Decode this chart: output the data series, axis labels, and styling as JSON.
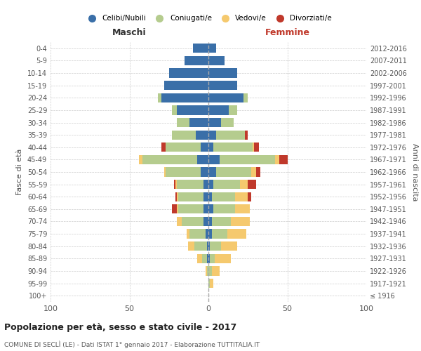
{
  "age_groups": [
    "100+",
    "95-99",
    "90-94",
    "85-89",
    "80-84",
    "75-79",
    "70-74",
    "65-69",
    "60-64",
    "55-59",
    "50-54",
    "45-49",
    "40-44",
    "35-39",
    "30-34",
    "25-29",
    "20-24",
    "15-19",
    "10-14",
    "5-9",
    "0-4"
  ],
  "birth_years": [
    "≤ 1916",
    "1917-1921",
    "1922-1926",
    "1927-1931",
    "1932-1936",
    "1937-1941",
    "1942-1946",
    "1947-1951",
    "1952-1956",
    "1957-1961",
    "1962-1966",
    "1967-1971",
    "1972-1976",
    "1977-1981",
    "1982-1986",
    "1987-1991",
    "1992-1996",
    "1997-2001",
    "2002-2006",
    "2007-2011",
    "2012-2016"
  ],
  "maschi": {
    "celibi": [
      0,
      0,
      0,
      1,
      1,
      2,
      3,
      3,
      3,
      3,
      5,
      7,
      5,
      8,
      12,
      20,
      30,
      28,
      25,
      15,
      10
    ],
    "coniugati": [
      0,
      0,
      1,
      3,
      8,
      10,
      14,
      16,
      16,
      17,
      22,
      35,
      22,
      15,
      8,
      3,
      2,
      0,
      0,
      0,
      0
    ],
    "vedovi": [
      0,
      0,
      1,
      3,
      4,
      2,
      3,
      1,
      1,
      1,
      1,
      2,
      0,
      0,
      0,
      0,
      0,
      0,
      0,
      0,
      0
    ],
    "divorziati": [
      0,
      0,
      0,
      0,
      0,
      0,
      0,
      3,
      1,
      1,
      0,
      0,
      3,
      0,
      0,
      0,
      0,
      0,
      0,
      0,
      0
    ]
  },
  "femmine": {
    "nubili": [
      0,
      0,
      0,
      1,
      1,
      2,
      2,
      3,
      2,
      3,
      5,
      7,
      3,
      5,
      8,
      13,
      22,
      18,
      18,
      10,
      5
    ],
    "coniugate": [
      0,
      1,
      2,
      3,
      7,
      10,
      12,
      14,
      15,
      17,
      22,
      35,
      25,
      18,
      8,
      5,
      3,
      0,
      0,
      0,
      0
    ],
    "vedove": [
      0,
      2,
      5,
      10,
      10,
      12,
      12,
      9,
      8,
      5,
      3,
      3,
      1,
      0,
      0,
      0,
      0,
      0,
      0,
      0,
      0
    ],
    "divorziate": [
      0,
      0,
      0,
      0,
      0,
      0,
      0,
      0,
      2,
      5,
      3,
      5,
      3,
      2,
      0,
      0,
      0,
      0,
      0,
      0,
      0
    ]
  },
  "colors": {
    "celibi": "#3a6fa8",
    "coniugati": "#b5cc8e",
    "vedovi": "#f5c96e",
    "divorziati": "#c0392b"
  },
  "xlim": 100,
  "title": "Popolazione per età, sesso e stato civile - 2017",
  "subtitle": "COMUNE DI SECLÌ (LE) - Dati ISTAT 1° gennaio 2017 - Elaborazione TUTTITALIA.IT",
  "ylabel": "Fasce di età",
  "ylabel_right": "Anni di nascita",
  "legend_labels": [
    "Celibi/Nubili",
    "Coniugati/e",
    "Vedovi/e",
    "Divorziati/e"
  ],
  "maschi_label": "Maschi",
  "femmine_label": "Femmine"
}
